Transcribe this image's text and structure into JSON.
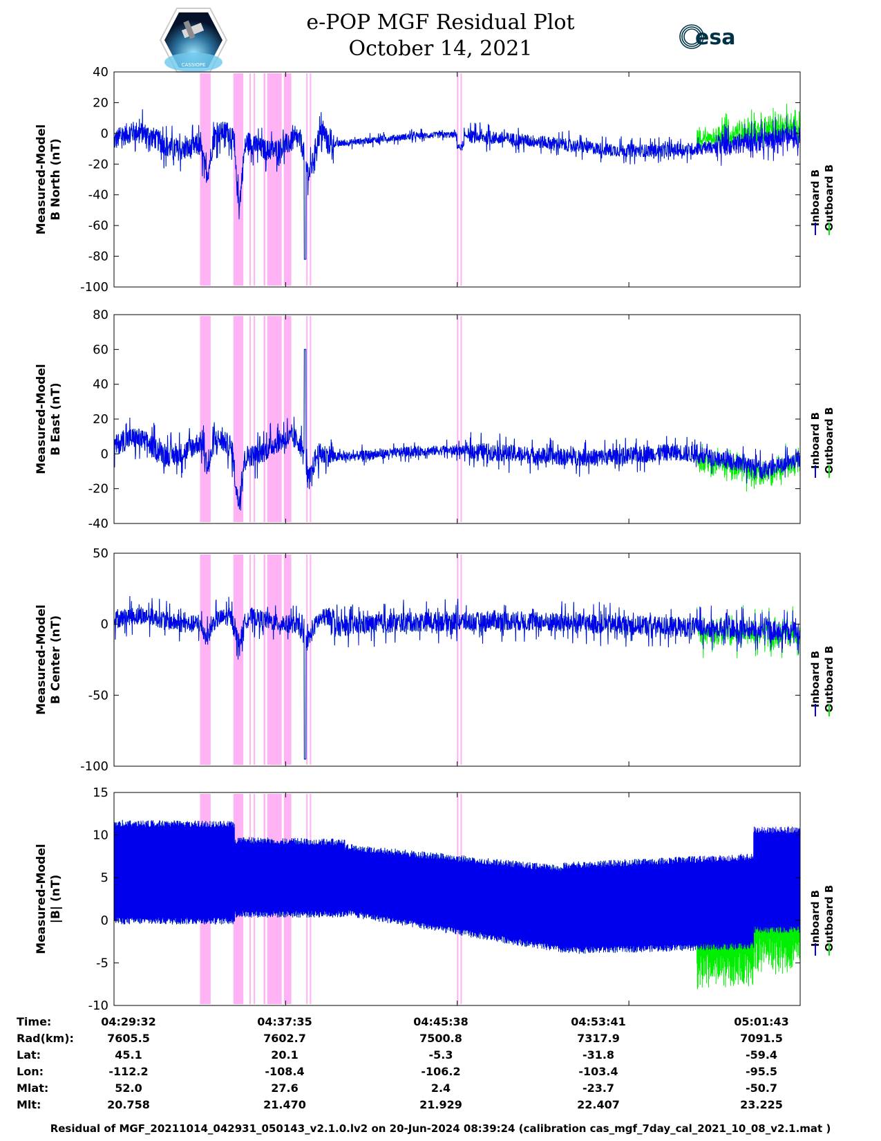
{
  "header": {
    "title_line1": "e-POP MGF Residual Plot",
    "title_line2": "October 14, 2021",
    "left_logo_caption": "CASSIOPE",
    "right_logo_text": "esa"
  },
  "colors": {
    "inboard": "#0000ee",
    "outboard": "#00ee00",
    "highlight": "#ffb3f5"
  },
  "chart_data": [
    {
      "type": "line",
      "panel": "b-north",
      "ylabel_line1": "Measured-Model",
      "ylabel_line2": "B North (nT)",
      "ylim": [
        -100,
        40
      ],
      "yticks": [
        -100,
        -80,
        -60,
        -40,
        -20,
        0,
        20,
        40
      ],
      "series": [
        {
          "name": "Inboard B"
        },
        {
          "name": "Outboard B"
        }
      ]
    },
    {
      "type": "line",
      "panel": "b-east",
      "ylabel_line1": "Measured-Model",
      "ylabel_line2": "B East (nT)",
      "ylim": [
        -40,
        80
      ],
      "yticks": [
        -40,
        -20,
        0,
        20,
        40,
        60,
        80
      ],
      "series": [
        {
          "name": "Inboard B"
        },
        {
          "name": "Outboard B"
        }
      ]
    },
    {
      "type": "line",
      "panel": "b-center",
      "ylabel_line1": "Measured-Model",
      "ylabel_line2": "B Center (nT)",
      "ylim": [
        -100,
        50
      ],
      "yticks": [
        -100,
        -50,
        0,
        50
      ],
      "series": [
        {
          "name": "Inboard B"
        },
        {
          "name": "Outboard B"
        }
      ]
    },
    {
      "type": "line",
      "panel": "b-magnitude",
      "ylabel_line1": "Measured-Model",
      "ylabel_line2": "|B| (nT)",
      "ylim": [
        -10,
        15
      ],
      "yticks": [
        -10,
        -5,
        0,
        5,
        10,
        15
      ],
      "series": [
        {
          "name": "Inboard B"
        },
        {
          "name": "Outboard B"
        }
      ]
    }
  ],
  "highlight_intervals_sec": [
    [
      242,
      272
    ],
    [
      336,
      364
    ],
    [
      381,
      385
    ],
    [
      393,
      397
    ],
    [
      421,
      426
    ],
    [
      431,
      472
    ],
    [
      478,
      499
    ],
    [
      541,
      545
    ],
    [
      551,
      555
    ],
    [
      965,
      969
    ],
    [
      975,
      979
    ]
  ],
  "x_range_sec": [
    0,
    1931
  ],
  "orbit_table": {
    "labels": [
      "Time:",
      "Rad(km):",
      "Lat:",
      "Lon:",
      "Mlat:",
      "Mlt:"
    ],
    "columns": [
      {
        "t": 0,
        "values": [
          "04:29:32",
          "7605.5",
          "45.1",
          "-112.2",
          "52.0",
          "20.758"
        ]
      },
      {
        "t": 483,
        "values": [
          "04:37:35",
          "7602.7",
          "20.1",
          "-108.4",
          "27.6",
          "21.470"
        ]
      },
      {
        "t": 966,
        "values": [
          "04:45:38",
          "7500.8",
          "-5.3",
          "-106.2",
          "2.4",
          "21.929"
        ]
      },
      {
        "t": 1449,
        "values": [
          "04:53:41",
          "7317.9",
          "-31.8",
          "-103.4",
          "-23.7",
          "22.407"
        ]
      },
      {
        "t": 1931,
        "values": [
          "05:01:43",
          "7091.5",
          "-59.4",
          "-95.5",
          "-50.7",
          "23.225"
        ]
      }
    ]
  },
  "footer_text": "Residual of MGF_20211014_042931_050143_v2.1.0.lv2 on 20-Jun-2024 08:39:24 (calibration cas_mgf_7day_cal_2021_10_08_v2.1.mat )"
}
